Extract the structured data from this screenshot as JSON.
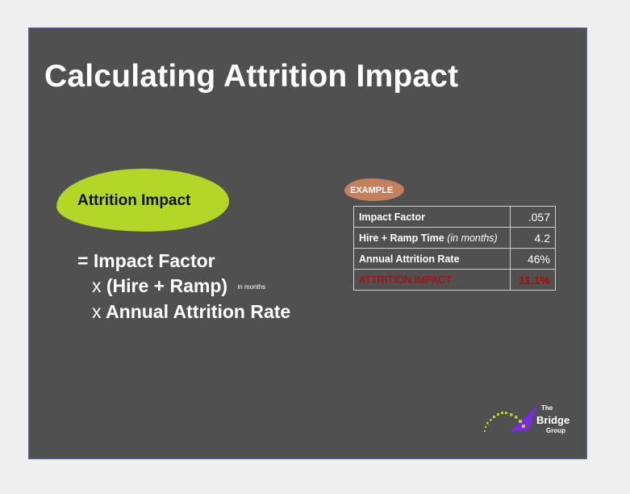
{
  "slide": {
    "title": "Calculating Attrition Impact",
    "blob_label": "Attrition Impact",
    "formula": {
      "line1": "= Impact Factor",
      "line2_x": "x",
      "line2": "(Hire + Ramp)",
      "line2_unit": "in months",
      "line3_x": "x",
      "line3": "Annual Attrition Rate"
    },
    "example": {
      "badge": "EXAMPLE",
      "rows": [
        {
          "label": "Impact Factor",
          "value": ".057"
        },
        {
          "label": "Hire + Ramp Time",
          "note": "(in months)",
          "value": "4.2"
        },
        {
          "label": "Annual Attrition Rate",
          "value": "46%"
        },
        {
          "label": "ATTRITION IMPACT",
          "value": "11.1%"
        }
      ]
    },
    "logo": {
      "line1": "The",
      "line2": "Bridge",
      "line3": "Group"
    }
  },
  "colors": {
    "background": "#505050",
    "accent_green": "#b4d626",
    "badge": "#c47f5c",
    "highlight_red": "#c00000",
    "logo_purple": "#7a2be0"
  }
}
